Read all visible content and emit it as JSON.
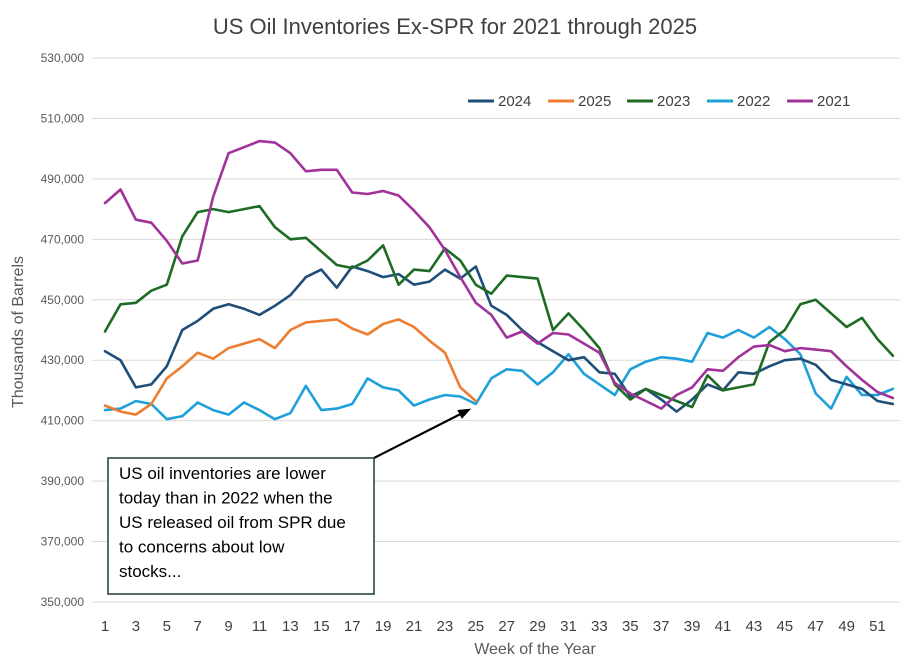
{
  "chart_data": {
    "type": "line",
    "title": "US Oil Inventories Ex-SPR for 2021 through 2025",
    "xlabel": "Week of the Year",
    "ylabel": "Thousands of Barrels",
    "ylim": [
      350000,
      530000
    ],
    "yticks": [
      350000,
      370000,
      390000,
      410000,
      430000,
      450000,
      470000,
      490000,
      510000,
      530000
    ],
    "ytick_labels": [
      "350,000",
      "370,000",
      "390,000",
      "410,000",
      "430,000",
      "450,000",
      "470,000",
      "490,000",
      "510,000",
      "530,000"
    ],
    "xlim": [
      1,
      53
    ],
    "xticks": [
      1,
      3,
      5,
      7,
      9,
      11,
      13,
      15,
      17,
      19,
      21,
      23,
      25,
      27,
      29,
      31,
      33,
      35,
      37,
      39,
      41,
      43,
      45,
      47,
      49,
      51
    ],
    "grid": true,
    "legend_position": "top-right",
    "series": [
      {
        "name": "2024",
        "color": "#1f4e79",
        "values": [
          433000,
          430000,
          421000,
          422000,
          428000,
          440000,
          443000,
          447000,
          448500,
          447000,
          445000,
          448000,
          451500,
          457500,
          460000,
          454000,
          461000,
          459500,
          457500,
          458500,
          455000,
          456000,
          460000,
          457000,
          461000,
          448000,
          445000,
          440000,
          436000,
          433000,
          430000,
          431000,
          426000,
          425500,
          418000,
          420500,
          417000,
          413000,
          417000,
          422000,
          420000,
          426000,
          425500,
          428000,
          430000,
          430500,
          428500,
          423500,
          422000,
          420500,
          416500,
          415500
        ]
      },
      {
        "name": "2025",
        "color": "#ed7d31",
        "values": [
          415000,
          413000,
          412000,
          415500,
          424000,
          428000,
          432500,
          430500,
          434000,
          435500,
          437000,
          434000,
          440000,
          442500,
          443000,
          443500,
          440500,
          438500,
          442000,
          443500,
          441000,
          436500,
          432500,
          421000,
          416500
        ]
      },
      {
        "name": "2023",
        "color": "#1e6b24",
        "values": [
          439500,
          448500,
          449000,
          453000,
          455000,
          471000,
          479000,
          480000,
          479000,
          480000,
          481000,
          474000,
          470000,
          470500,
          466000,
          461500,
          460500,
          463000,
          468000,
          455000,
          460000,
          459500,
          467000,
          463000,
          455000,
          452000,
          458000,
          457500,
          457000,
          440000,
          445500,
          440000,
          434000,
          422000,
          417000,
          420500,
          418500,
          416500,
          414500,
          425000,
          420000,
          421000,
          422000,
          436000,
          440000,
          448500,
          450000,
          445500,
          441000,
          444000,
          437000,
          431500
        ]
      },
      {
        "name": "2022",
        "color": "#1ea0d9",
        "values": [
          413500,
          414000,
          416500,
          415500,
          410500,
          411500,
          416000,
          413500,
          412000,
          416000,
          413500,
          410500,
          412500,
          421500,
          413500,
          414000,
          415500,
          424000,
          421000,
          420000,
          415000,
          417000,
          418500,
          418000,
          415500,
          424000,
          427000,
          426500,
          422000,
          426000,
          432000,
          425500,
          422000,
          418500,
          427000,
          429500,
          431000,
          430500,
          429500,
          439000,
          437500,
          440000,
          437500,
          441000,
          437000,
          432000,
          419000,
          414000,
          424500,
          418500,
          418500,
          420500
        ]
      },
      {
        "name": "2021",
        "color": "#a0329a",
        "values": [
          482000,
          486500,
          476500,
          475500,
          469500,
          462000,
          463000,
          484000,
          498500,
          500500,
          502500,
          502000,
          498500,
          492500,
          493000,
          493000,
          485500,
          485000,
          486000,
          484500,
          479500,
          474000,
          466500,
          457500,
          449000,
          445000,
          437500,
          439500,
          435500,
          439000,
          438500,
          435500,
          432500,
          422500,
          419000,
          416500,
          414000,
          418500,
          421000,
          427000,
          426500,
          431000,
          434500,
          435000,
          433000,
          434000,
          433500,
          433000,
          428000,
          423500,
          419500,
          417500
        ]
      }
    ],
    "annotations": [
      {
        "lines": [
          "US oil inventories are lower",
          "today than in 2022 when the",
          "US released  oil from SPR due",
          "to concerns about low",
          "stocks..."
        ],
        "arrow_to": [
          24.7,
          414000
        ]
      }
    ]
  }
}
